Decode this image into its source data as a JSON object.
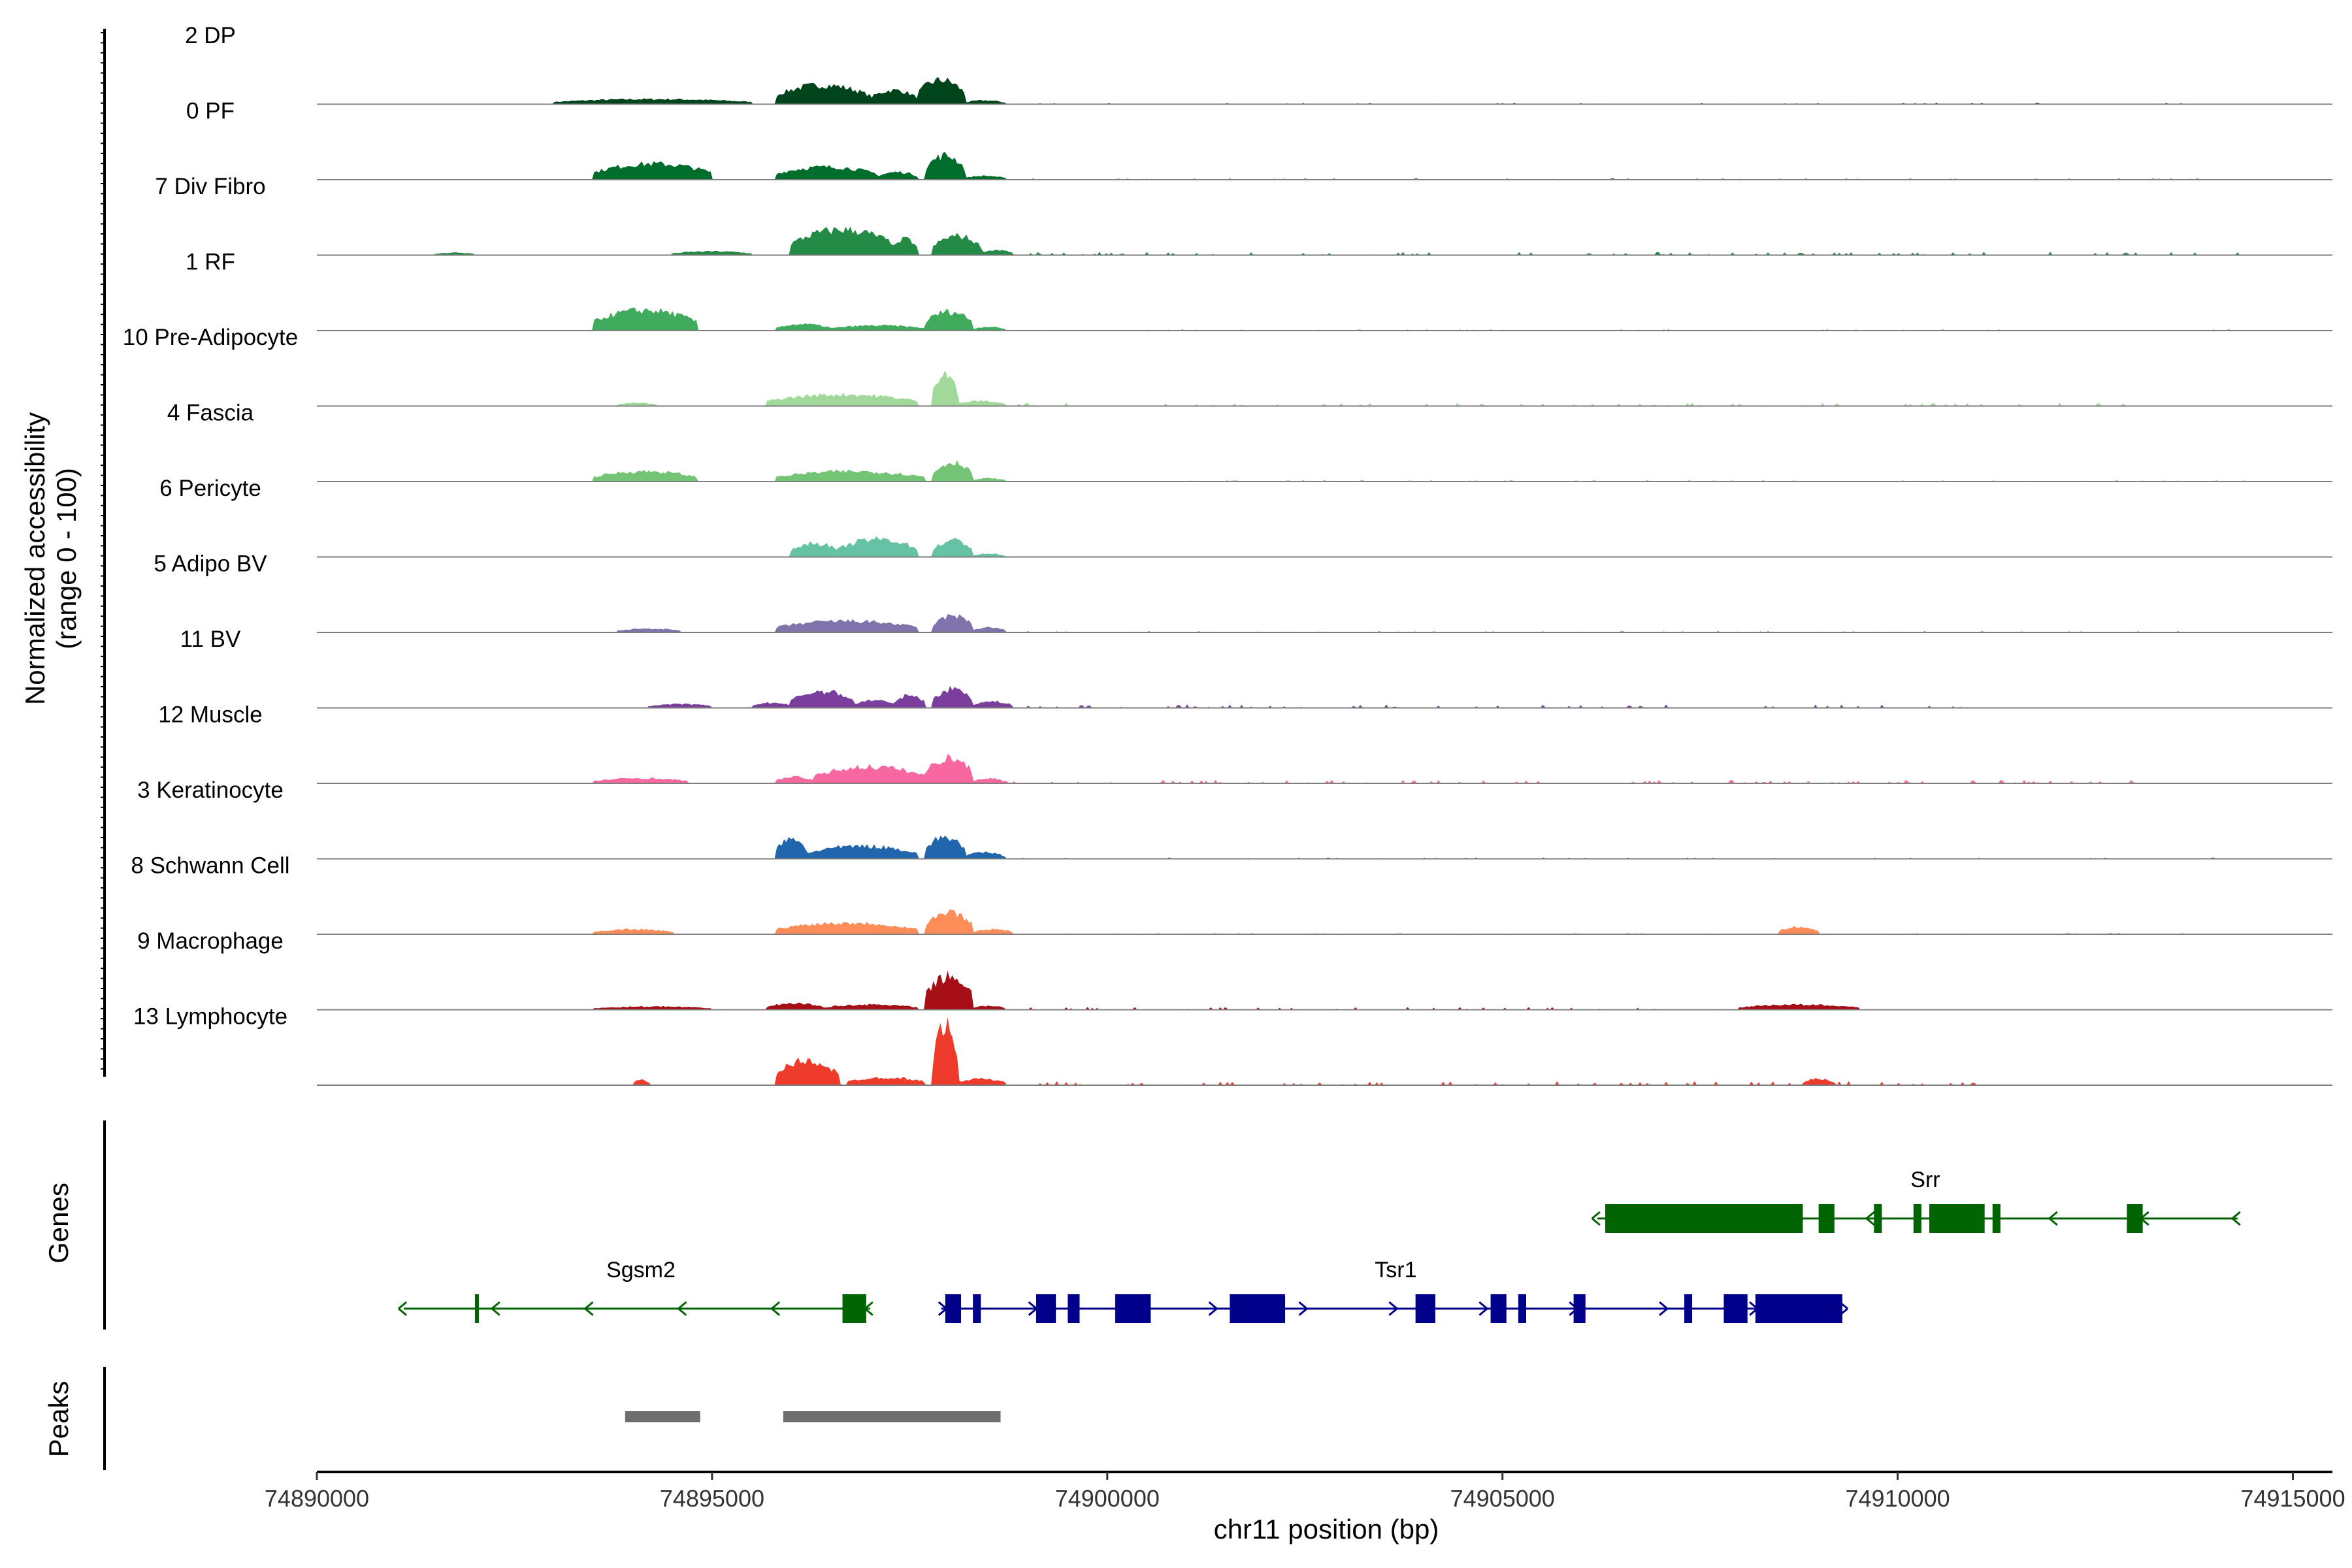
{
  "chart_data": {
    "type": "area",
    "title": "",
    "ylabel": [
      "Normalized accessibility",
      "(range 0 - 100)"
    ],
    "xlabel": "chr11 position (bp)",
    "xlim": [
      74890000,
      74915500
    ],
    "ylim": [
      0,
      100
    ],
    "x_ticks": [
      74890000,
      74895000,
      74900000,
      74905000,
      74910000,
      74915000
    ],
    "x_tick_labels": [
      "74890000",
      "74895000",
      "74900000",
      "74905000",
      "74910000",
      "74915000"
    ],
    "panel_titles": {
      "genes": "Genes",
      "peaks": "Peaks"
    },
    "series": [
      {
        "name": "2 DP",
        "color": "#00441b",
        "peaks": [
          [
            74893000,
            74895500,
            8
          ],
          [
            74895800,
            74897000,
            30
          ],
          [
            74897000,
            74897600,
            22
          ],
          [
            74897600,
            74898200,
            38
          ],
          [
            74898200,
            74898700,
            6
          ]
        ],
        "noise": [
          [
            74898700,
            74914500,
            2
          ]
        ]
      },
      {
        "name": "0 PF",
        "color": "#006d2c",
        "peaks": [
          [
            74893500,
            74895000,
            25
          ],
          [
            74895800,
            74897100,
            20
          ],
          [
            74897100,
            74897600,
            12
          ],
          [
            74897700,
            74898200,
            38
          ],
          [
            74898200,
            74898700,
            6
          ]
        ],
        "noise": [
          [
            74898700,
            74914500,
            2
          ]
        ]
      },
      {
        "name": "7 Div Fibro",
        "color": "#238b45",
        "peaks": [
          [
            74891500,
            74892000,
            4
          ],
          [
            74894500,
            74895500,
            6
          ],
          [
            74896000,
            74897300,
            40
          ],
          [
            74897300,
            74897600,
            25
          ],
          [
            74897800,
            74898400,
            30
          ],
          [
            74898400,
            74898800,
            8
          ]
        ],
        "noise": [
          [
            74898800,
            74914300,
            5
          ]
        ]
      },
      {
        "name": "1 RF",
        "color": "#41ab5d",
        "peaks": [
          [
            74893500,
            74894800,
            32
          ],
          [
            74895800,
            74896500,
            10
          ],
          [
            74896500,
            74897700,
            8
          ],
          [
            74897700,
            74898300,
            30
          ],
          [
            74898300,
            74898700,
            6
          ]
        ],
        "noise": [
          [
            74898700,
            74914500,
            2
          ]
        ]
      },
      {
        "name": "10 Pre-Adipocyte",
        "color": "#a1d99b",
        "peaks": [
          [
            74893800,
            74894300,
            5
          ],
          [
            74895700,
            74897600,
            18
          ],
          [
            74897800,
            74898100,
            55
          ],
          [
            74898100,
            74898700,
            8
          ]
        ],
        "noise": [
          [
            74898700,
            74913000,
            5
          ]
        ]
      },
      {
        "name": "4 Fascia",
        "color": "#74c476",
        "peaks": [
          [
            74893500,
            74894800,
            16
          ],
          [
            74895800,
            74897700,
            16
          ],
          [
            74897800,
            74898300,
            30
          ],
          [
            74898300,
            74898700,
            5
          ]
        ],
        "noise": [
          [
            74898700,
            74914500,
            2
          ]
        ]
      },
      {
        "name": "6 Pericyte",
        "color": "#66c2a5",
        "peaks": [
          [
            74896000,
            74896600,
            22
          ],
          [
            74896600,
            74897600,
            28
          ],
          [
            74897800,
            74898300,
            26
          ],
          [
            74898300,
            74898700,
            5
          ]
        ],
        "noise": [
          [
            74898700,
            74914000,
            1
          ]
        ]
      },
      {
        "name": "5 Adipo BV",
        "color": "#8073ac",
        "peaks": [
          [
            74893800,
            74894600,
            6
          ],
          [
            74895800,
            74897600,
            18
          ],
          [
            74897800,
            74898300,
            26
          ],
          [
            74898300,
            74898700,
            8
          ]
        ],
        "noise": [
          [
            74898700,
            74914000,
            2
          ]
        ]
      },
      {
        "name": "11 BV",
        "color": "#7a3e9d",
        "peaks": [
          [
            74894200,
            74895000,
            6
          ],
          [
            74895500,
            74896000,
            8
          ],
          [
            74896000,
            74896800,
            26
          ],
          [
            74896800,
            74897300,
            12
          ],
          [
            74897300,
            74897700,
            20
          ],
          [
            74897800,
            74898300,
            30
          ],
          [
            74898300,
            74898800,
            10
          ]
        ],
        "noise": [
          [
            74898800,
            74911000,
            5
          ]
        ]
      },
      {
        "name": "12 Muscle",
        "color": "#f768a1",
        "peaks": [
          [
            74893500,
            74894700,
            8
          ],
          [
            74895800,
            74896300,
            10
          ],
          [
            74896300,
            74897700,
            26
          ],
          [
            74897700,
            74898300,
            40
          ],
          [
            74898300,
            74898700,
            8
          ]
        ],
        "noise": [
          [
            74898700,
            74913000,
            5
          ]
        ]
      },
      {
        "name": "3 Keratinocyte",
        "color": "#2166ac",
        "peaks": [
          [
            74895800,
            74896200,
            30
          ],
          [
            74896200,
            74897600,
            20
          ],
          [
            74897700,
            74898200,
            34
          ],
          [
            74898200,
            74898700,
            10
          ]
        ],
        "noise": [
          [
            74898700,
            74914000,
            2
          ]
        ]
      },
      {
        "name": "8 Schwann Cell",
        "color": "#fc8d59",
        "peaks": [
          [
            74893500,
            74894500,
            8
          ],
          [
            74895800,
            74897600,
            18
          ],
          [
            74897700,
            74898300,
            34
          ],
          [
            74898300,
            74898800,
            8
          ],
          [
            74908500,
            74909000,
            12
          ]
        ],
        "noise": [
          [
            74898800,
            74914500,
            2
          ]
        ]
      },
      {
        "name": "9 Macrophage",
        "color": "#a50f15",
        "peaks": [
          [
            74893500,
            74895000,
            5
          ],
          [
            74895700,
            74896400,
            10
          ],
          [
            74896400,
            74897600,
            8
          ],
          [
            74897700,
            74898300,
            52
          ],
          [
            74898300,
            74898700,
            6
          ],
          [
            74908000,
            74909500,
            8
          ]
        ],
        "noise": [
          [
            74898700,
            74909500,
            4
          ]
        ]
      },
      {
        "name": "13 Lymphocyte",
        "color": "#ef3b2c",
        "peaks": [
          [
            74894000,
            74894200,
            8
          ],
          [
            74895800,
            74896600,
            38
          ],
          [
            74896700,
            74897700,
            12
          ],
          [
            74897800,
            74898100,
            95
          ],
          [
            74898100,
            74898700,
            10
          ],
          [
            74908800,
            74909200,
            10
          ]
        ],
        "noise": [
          [
            74898700,
            74911000,
            6
          ]
        ]
      }
    ],
    "genes": [
      {
        "name": "Srr",
        "strand": "-",
        "color": "#006400",
        "row": 0,
        "start": 74906200,
        "end": 74914300,
        "label_x": 74910350,
        "exons": [
          [
            74906300,
            74908800,
            "utr"
          ],
          [
            74909000,
            74909200,
            "cds"
          ],
          [
            74909700,
            74909800,
            "cds"
          ],
          [
            74910200,
            74910300,
            "cds"
          ],
          [
            74910400,
            74911100,
            "cds"
          ],
          [
            74911200,
            74911300,
            "cds"
          ],
          [
            74912900,
            74913100,
            "cds"
          ]
        ]
      },
      {
        "name": "Sgsm2",
        "strand": "-",
        "color": "#006400",
        "row": 1,
        "start": 74891100,
        "end": 74897000,
        "label_x": 74894100,
        "exons": [
          [
            74892000,
            74892050,
            "cds"
          ],
          [
            74896650,
            74896950,
            "cds"
          ]
        ]
      },
      {
        "name": "Tsr1",
        "strand": "+",
        "color": "#00008b",
        "row": 1,
        "start": 74897900,
        "end": 74909300,
        "label_x": 74903650,
        "exons": [
          [
            74897950,
            74898150,
            "cds"
          ],
          [
            74898300,
            74898400,
            "cds"
          ],
          [
            74899100,
            74899350,
            "cds"
          ],
          [
            74899500,
            74899650,
            "cds"
          ],
          [
            74900100,
            74900550,
            "cds"
          ],
          [
            74901550,
            74902250,
            "cds"
          ],
          [
            74903900,
            74904150,
            "cds"
          ],
          [
            74904850,
            74905050,
            "cds"
          ],
          [
            74905200,
            74905300,
            "cds"
          ],
          [
            74905900,
            74906050,
            "cds"
          ],
          [
            74907300,
            74907400,
            "cds"
          ],
          [
            74907800,
            74908100,
            "cds"
          ],
          [
            74908200,
            74909300,
            "utr"
          ]
        ]
      }
    ],
    "peaks_track": [
      [
        74893900,
        74894850
      ],
      [
        74895900,
        74898650
      ]
    ],
    "peaks_color": "#6e6e6e"
  }
}
